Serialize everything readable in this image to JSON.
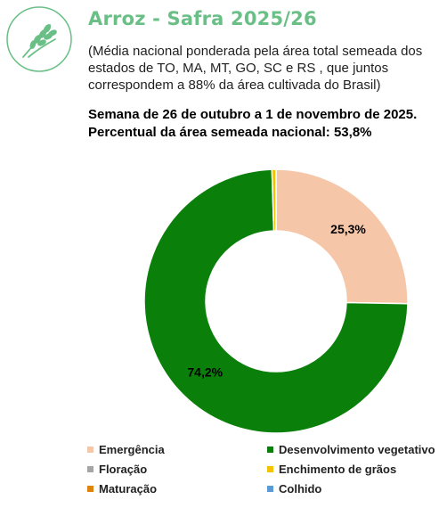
{
  "header": {
    "icon": "rice-plant-icon",
    "title": "Arroz - Safra 2025/26",
    "subtitle": "(Média nacional ponderada pela área total semeada dos estados de TO, MA, MT, GO, SC e RS , que juntos correspondem a 88% da área cultivada do Brasil)",
    "week": "Semana de 26 de outubro a 1 de novembro de 2025.",
    "planted_pct": "Percentual da área semeada nacional: 53,8%"
  },
  "colors": {
    "title": "#6abf86",
    "logo": "#6abf86"
  },
  "chart_data": {
    "type": "pie",
    "donut": true,
    "legend_position": "bottom",
    "series": [
      {
        "name": "Emergência",
        "value": 25.3,
        "label": "25,3%",
        "color": "#f5c6a8"
      },
      {
        "name": "Desenvolvimento vegetativo",
        "value": 74.2,
        "label": "74,2%",
        "color": "#0a7f0a"
      },
      {
        "name": "Floração",
        "value": 0.0,
        "label": "",
        "color": "#a5a5a5"
      },
      {
        "name": "Enchimento de grãos",
        "value": 0.5,
        "label": "",
        "color": "#f3c300"
      },
      {
        "name": "Maturação",
        "value": 0.0,
        "label": "",
        "color": "#e0820e"
      },
      {
        "name": "Colhido",
        "value": 0.0,
        "label": "",
        "color": "#5b9bd5"
      }
    ]
  }
}
